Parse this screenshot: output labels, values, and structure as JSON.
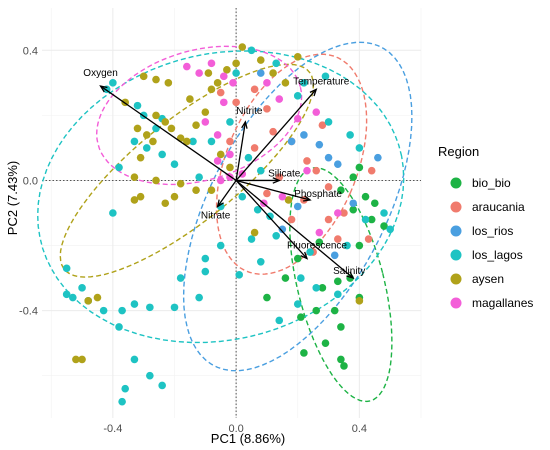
{
  "chart_data": {
    "type": "scatter",
    "title": "",
    "xlabel": "PC1 (8.86%)",
    "ylabel": "PC2 (7.43%)",
    "xlim": [
      -0.63,
      0.6
    ],
    "ylim": [
      -0.73,
      0.53
    ],
    "x_ticks": [
      -0.4,
      0.0,
      0.4
    ],
    "x_tick_labels": [
      "-0.4",
      "0.0",
      "0.4"
    ],
    "y_ticks": [
      -0.4,
      0.0,
      0.4
    ],
    "y_tick_labels": [
      "-0.4",
      "0.0",
      "0.4"
    ],
    "grid": true,
    "legend_position": "right",
    "legend": {
      "title": "Region",
      "entries": [
        {
          "name": "bio_bio",
          "label": "bio_bio",
          "color": "#1db345"
        },
        {
          "name": "araucania",
          "label": "araucania",
          "color": "#f07b6d"
        },
        {
          "name": "los_rios",
          "label": "los_rios",
          "color": "#4a9fe0"
        },
        {
          "name": "los_lagos",
          "label": "los_lagos",
          "color": "#1ec3c3"
        },
        {
          "name": "aysen",
          "label": "aysen",
          "color": "#b0a21a"
        },
        {
          "name": "magallanes",
          "label": "magallanes",
          "color": "#f35ed8"
        }
      ]
    },
    "series": [
      {
        "name": "bio_bio",
        "color": "#1db345",
        "points": [
          [
            0.4,
            0.04
          ],
          [
            0.38,
            0.01
          ],
          [
            0.34,
            -0.03
          ],
          [
            0.42,
            -0.05
          ],
          [
            0.45,
            -0.07
          ],
          [
            0.38,
            -0.09
          ],
          [
            0.48,
            -0.14
          ],
          [
            0.44,
            -0.12
          ],
          [
            0.4,
            -0.2
          ],
          [
            0.37,
            -0.3
          ],
          [
            0.28,
            -0.33
          ],
          [
            0.33,
            -0.31
          ],
          [
            0.26,
            -0.4
          ],
          [
            0.32,
            -0.4
          ],
          [
            0.34,
            -0.45
          ],
          [
            0.29,
            -0.5
          ],
          [
            0.22,
            -0.53
          ],
          [
            0.34,
            -0.55
          ],
          [
            0.35,
            -0.57
          ],
          [
            0.1,
            -0.36
          ],
          [
            0.16,
            -0.3
          ],
          [
            0.2,
            -0.24
          ],
          [
            0.27,
            -0.19
          ],
          [
            0.21,
            -0.42
          ],
          [
            0.4,
            -0.36
          ]
        ]
      },
      {
        "name": "araucania",
        "color": "#f07b6d",
        "points": [
          [
            -0.05,
            0.27
          ],
          [
            0.0,
            0.24
          ],
          [
            0.06,
            0.28
          ],
          [
            0.1,
            0.22
          ],
          [
            -0.02,
            0.12
          ],
          [
            0.06,
            0.1
          ],
          [
            0.12,
            0.15
          ],
          [
            0.18,
            0.12
          ],
          [
            0.23,
            0.06
          ],
          [
            0.26,
            0.03
          ],
          [
            0.3,
            -0.02
          ],
          [
            0.22,
            -0.06
          ],
          [
            0.18,
            -0.12
          ],
          [
            0.3,
            -0.12
          ],
          [
            0.35,
            -0.1
          ],
          [
            0.43,
            -0.18
          ],
          [
            0.1,
            -0.04
          ],
          [
            0.14,
            0.01
          ],
          [
            0.28,
            0.17
          ],
          [
            0.33,
            -0.18
          ],
          [
            0.25,
            -0.22
          ],
          [
            0.44,
            0.03
          ]
        ]
      },
      {
        "name": "los_rios",
        "color": "#4a9fe0",
        "points": [
          [
            0.08,
            0.33
          ],
          [
            0.18,
            0.12
          ],
          [
            0.22,
            0.14
          ],
          [
            0.27,
            0.11
          ],
          [
            0.3,
            0.07
          ],
          [
            0.33,
            0.05
          ],
          [
            0.38,
            -0.07
          ],
          [
            0.46,
            0.07
          ],
          [
            0.2,
            -0.08
          ],
          [
            0.15,
            -0.15
          ],
          [
            0.32,
            -0.23
          ]
        ]
      },
      {
        "name": "los_lagos",
        "color": "#1ec3c3",
        "points": [
          [
            -0.42,
            0.28
          ],
          [
            -0.4,
            0.3
          ],
          [
            -0.32,
            0.23
          ],
          [
            -0.3,
            0.2
          ],
          [
            -0.26,
            0.16
          ],
          [
            -0.33,
            0.12
          ],
          [
            -0.29,
            0.1
          ],
          [
            -0.24,
            0.08
          ],
          [
            -0.2,
            0.05
          ],
          [
            -0.12,
            0.01
          ],
          [
            -0.14,
            0.12
          ],
          [
            -0.08,
            0.12
          ],
          [
            -0.02,
            0.18
          ],
          [
            0.04,
            0.07
          ],
          [
            0.08,
            0.03
          ],
          [
            0.02,
            -0.05
          ],
          [
            -0.05,
            -0.08
          ],
          [
            0.07,
            -0.09
          ],
          [
            0.11,
            -0.11
          ],
          [
            0.13,
            -0.17
          ],
          [
            0.05,
            -0.18
          ],
          [
            -0.05,
            -0.2
          ],
          [
            -0.1,
            -0.24
          ],
          [
            -0.18,
            -0.3
          ],
          [
            -0.12,
            -0.36
          ],
          [
            -0.2,
            -0.39
          ],
          [
            -0.28,
            -0.39
          ],
          [
            -0.33,
            -0.38
          ],
          [
            -0.37,
            -0.4
          ],
          [
            -0.43,
            -0.4
          ],
          [
            -0.48,
            -0.37
          ],
          [
            -0.55,
            -0.27
          ],
          [
            -0.55,
            -0.35
          ],
          [
            -0.53,
            -0.36
          ],
          [
            -0.5,
            -0.33
          ],
          [
            -0.38,
            -0.45
          ],
          [
            -0.33,
            -0.55
          ],
          [
            -0.28,
            -0.6
          ],
          [
            -0.24,
            -0.63
          ],
          [
            -0.36,
            -0.64
          ],
          [
            -0.37,
            -0.68
          ],
          [
            -0.1,
            -0.28
          ],
          [
            0.01,
            -0.29
          ],
          [
            0.08,
            -0.25
          ],
          [
            0.24,
            -0.22
          ],
          [
            0.36,
            -0.2
          ],
          [
            0.42,
            -0.12
          ],
          [
            0.48,
            -0.1
          ],
          [
            0.5,
            -0.15
          ],
          [
            0.4,
            0.1
          ],
          [
            0.37,
            0.14
          ],
          [
            0.3,
            0.18
          ],
          [
            0.2,
            0.26
          ],
          [
            0.13,
            0.36
          ],
          [
            0.22,
            0.3
          ],
          [
            0.29,
            0.32
          ],
          [
            0.05,
            0.4
          ],
          [
            0.0,
            0.33
          ],
          [
            0.2,
            -0.38
          ],
          [
            0.14,
            -0.43
          ],
          [
            0.21,
            -0.3
          ],
          [
            0.33,
            -0.35
          ],
          [
            0.26,
            -0.33
          ],
          [
            -0.4,
            -0.1
          ],
          [
            -0.38,
            0.04
          ],
          [
            -0.24,
            0.19
          ]
        ]
      },
      {
        "name": "aysen",
        "color": "#b0a21a",
        "points": [
          [
            -0.36,
            0.24
          ],
          [
            -0.32,
            0.16
          ],
          [
            -0.29,
            0.14
          ],
          [
            -0.27,
            0.12
          ],
          [
            -0.26,
            0.2
          ],
          [
            -0.23,
            0.18
          ],
          [
            -0.21,
            0.16
          ],
          [
            -0.18,
            0.13
          ],
          [
            -0.16,
            0.12
          ],
          [
            -0.13,
            0.17
          ],
          [
            -0.1,
            0.21
          ],
          [
            -0.08,
            0.28
          ],
          [
            -0.06,
            0.3
          ],
          [
            -0.03,
            0.34
          ],
          [
            0.0,
            0.36
          ],
          [
            0.02,
            0.41
          ],
          [
            -0.09,
            0.33
          ],
          [
            -0.15,
            0.25
          ],
          [
            -0.22,
            0.3
          ],
          [
            -0.26,
            0.31
          ],
          [
            -0.3,
            0.32
          ],
          [
            -0.31,
            0.07
          ],
          [
            -0.33,
            0.01
          ],
          [
            -0.31,
            -0.05
          ],
          [
            -0.33,
            -0.06
          ],
          [
            -0.26,
            0.0
          ],
          [
            -0.18,
            -0.01
          ],
          [
            -0.13,
            -0.03
          ],
          [
            -0.2,
            -0.05
          ],
          [
            -0.23,
            -0.07
          ],
          [
            -0.08,
            -0.03
          ],
          [
            -0.02,
            0.04
          ],
          [
            -0.05,
            0.08
          ],
          [
            0.08,
            0.37
          ],
          [
            0.12,
            0.33
          ],
          [
            0.16,
            0.3
          ],
          [
            0.2,
            0.38
          ],
          [
            0.17,
            -0.06
          ],
          [
            0.06,
            -0.16
          ],
          [
            0.4,
            -0.37
          ],
          [
            -0.45,
            -0.36
          ],
          [
            -0.52,
            -0.55
          ],
          [
            -0.5,
            -0.55
          ],
          [
            -0.48,
            -0.37
          ]
        ]
      },
      {
        "name": "magallanes",
        "color": "#f35ed8",
        "points": [
          [
            -0.16,
            0.35
          ],
          [
            -0.12,
            0.33
          ],
          [
            -0.08,
            0.36
          ],
          [
            -0.04,
            0.32
          ],
          [
            -0.01,
            0.3
          ],
          [
            -0.04,
            0.24
          ],
          [
            -0.1,
            0.18
          ],
          [
            -0.06,
            0.14
          ],
          [
            -0.02,
            0.08
          ],
          [
            -0.06,
            0.06
          ],
          [
            0.02,
            0.02
          ],
          [
            -0.02,
            0.01
          ],
          [
            -0.05,
            0.0
          ],
          [
            0.1,
            0.3
          ],
          [
            0.14,
            0.25
          ],
          [
            0.2,
            0.19
          ],
          [
            0.26,
            0.21
          ],
          [
            0.09,
            -0.07
          ],
          [
            0.15,
            -0.05
          ],
          [
            0.23,
            0.03
          ],
          [
            0.33,
            -0.1
          ],
          [
            0.27,
            -0.16
          ]
        ]
      }
    ],
    "ellipses": [
      {
        "series": "bio_bio",
        "color": "#1db345",
        "cx": 0.34,
        "cy": -0.32,
        "rx": 0.14,
        "ry": 0.37,
        "angle_deg": 15
      },
      {
        "series": "araucania",
        "color": "#f07b6d",
        "cx": 0.18,
        "cy": 0.05,
        "rx": 0.21,
        "ry": 0.36,
        "angle_deg": -25
      },
      {
        "series": "los_rios",
        "color": "#4a9fe0",
        "cx": 0.2,
        "cy": -0.08,
        "rx": 0.28,
        "ry": 0.56,
        "angle_deg": -30
      },
      {
        "series": "los_lagos",
        "color": "#1ec3c3",
        "cx": -0.05,
        "cy": -0.05,
        "rx": 0.6,
        "ry": 0.44,
        "angle_deg": 12
      },
      {
        "series": "aysen",
        "color": "#b0a21a",
        "cx": -0.16,
        "cy": 0.03,
        "rx": 0.16,
        "ry": 0.5,
        "angle_deg": -53
      },
      {
        "series": "magallanes",
        "color": "#f35ed8",
        "cx": -0.12,
        "cy": 0.2,
        "rx": 0.34,
        "ry": 0.2,
        "angle_deg": 15
      }
    ],
    "variables": [
      {
        "name": "Oxygen",
        "x": -0.44,
        "y": 0.29
      },
      {
        "name": "Temperature",
        "x": 0.26,
        "y": 0.28
      },
      {
        "name": "Nitrite",
        "x": 0.03,
        "y": 0.18
      },
      {
        "name": "Silicate",
        "x": 0.14,
        "y": 0.0
      },
      {
        "name": "Phosphate",
        "x": 0.24,
        "y": -0.06
      },
      {
        "name": "Nitrate",
        "x": -0.06,
        "y": -0.08
      },
      {
        "name": "Fluorescence",
        "x": 0.23,
        "y": -0.24
      },
      {
        "name": "Salinity",
        "x": 0.38,
        "y": -0.3
      }
    ]
  }
}
